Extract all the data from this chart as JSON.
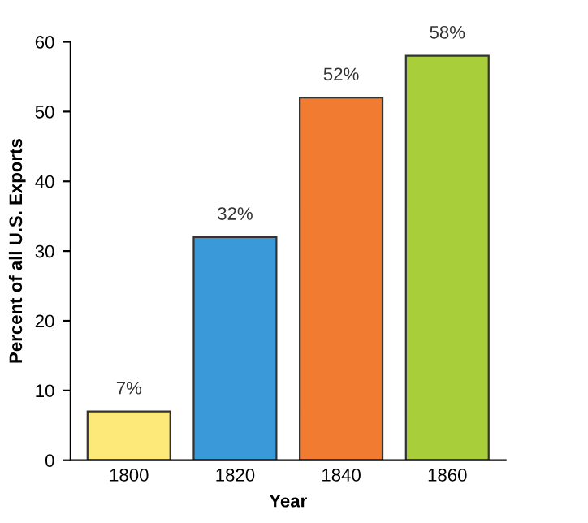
{
  "chart_data": {
    "type": "bar",
    "xlabel": "Year",
    "ylabel": "Percent of all U.S. Exports",
    "categories": [
      "1800",
      "1820",
      "1840",
      "1860"
    ],
    "values": [
      7,
      32,
      52,
      58
    ],
    "colors": [
      "#fde97a",
      "#3a9ad9",
      "#f07b31",
      "#a8cf3a"
    ],
    "value_labels": [
      "7%",
      "32%",
      "52%",
      "58%"
    ],
    "ylim": [
      0,
      60
    ],
    "yticks": [
      0,
      10,
      20,
      30,
      40,
      50,
      60
    ],
    "grid": false
  }
}
